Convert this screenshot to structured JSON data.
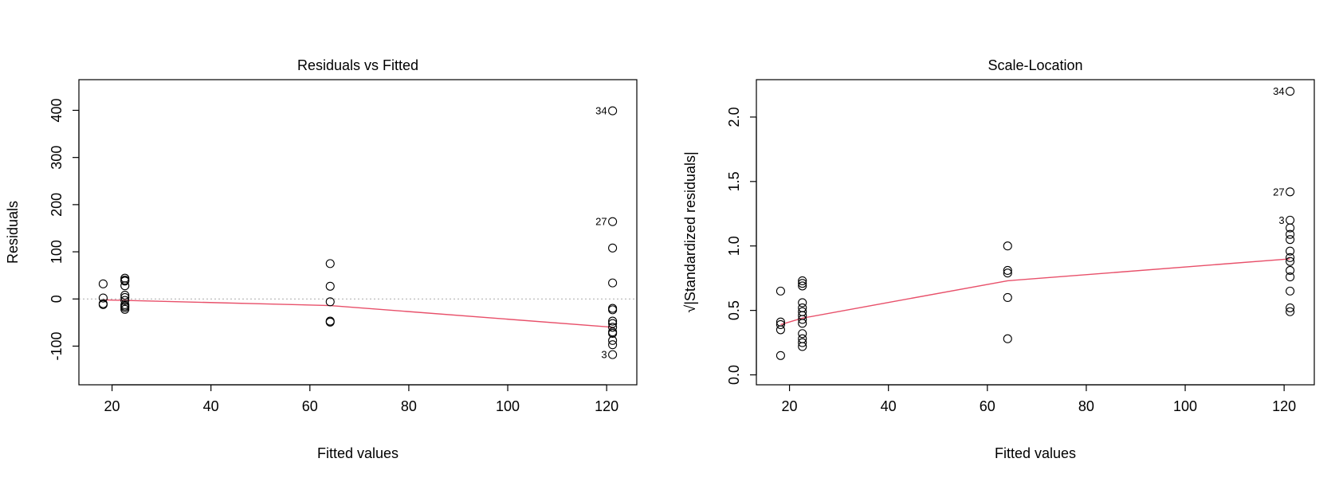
{
  "chart_data": [
    {
      "type": "scatter",
      "title": "Residuals vs Fitted",
      "xlabel": "Fitted values",
      "ylabel": "Residuals",
      "xlim": [
        13.3,
        126.1
      ],
      "ylim": [
        -182,
        465
      ],
      "xticks": [
        20,
        40,
        60,
        80,
        100,
        120
      ],
      "yticks": [
        -100,
        0,
        100,
        200,
        300,
        400
      ],
      "xtick_labels": [
        "20",
        "40",
        "60",
        "80",
        "100",
        "120"
      ],
      "ytick_labels": [
        "-100",
        "0",
        "100",
        "200",
        "300",
        "400"
      ],
      "reference_line": {
        "y": 0,
        "style": "dotted",
        "color": "#aaaaaa"
      },
      "points": [
        {
          "x": 18.2,
          "y": 32
        },
        {
          "x": 18.2,
          "y": 2
        },
        {
          "x": 18.2,
          "y": -10
        },
        {
          "x": 18.2,
          "y": -12
        },
        {
          "x": 22.6,
          "y": 44
        },
        {
          "x": 22.6,
          "y": 40
        },
        {
          "x": 22.6,
          "y": 38
        },
        {
          "x": 22.6,
          "y": 28
        },
        {
          "x": 22.6,
          "y": 8
        },
        {
          "x": 22.6,
          "y": 3
        },
        {
          "x": 22.6,
          "y": -3
        },
        {
          "x": 22.6,
          "y": -12
        },
        {
          "x": 22.6,
          "y": -15
        },
        {
          "x": 22.6,
          "y": -18
        },
        {
          "x": 22.6,
          "y": -22
        },
        {
          "x": 64.1,
          "y": 75
        },
        {
          "x": 64.1,
          "y": 27
        },
        {
          "x": 64.1,
          "y": -6
        },
        {
          "x": 64.1,
          "y": -47
        },
        {
          "x": 64.1,
          "y": -49
        },
        {
          "x": 121.2,
          "y": 399,
          "label": "34"
        },
        {
          "x": 121.2,
          "y": 164,
          "label": "27"
        },
        {
          "x": 121.2,
          "y": 108
        },
        {
          "x": 121.2,
          "y": 34
        },
        {
          "x": 121.2,
          "y": -20
        },
        {
          "x": 121.2,
          "y": -23
        },
        {
          "x": 121.2,
          "y": -47
        },
        {
          "x": 121.2,
          "y": -52
        },
        {
          "x": 121.2,
          "y": -60
        },
        {
          "x": 121.2,
          "y": -70
        },
        {
          "x": 121.2,
          "y": -73
        },
        {
          "x": 121.2,
          "y": -88
        },
        {
          "x": 121.2,
          "y": -97
        },
        {
          "x": 121.2,
          "y": -118,
          "label": "3"
        }
      ],
      "smooth_line": {
        "color": "#e8506a",
        "x": [
          18.2,
          22.6,
          64.1,
          121.2
        ],
        "y": [
          -2,
          -3,
          -14,
          -60
        ]
      }
    },
    {
      "type": "scatter",
      "title": "Scale-Location",
      "xlabel": "Fitted values",
      "ylabel": "√|Standardized residuals|",
      "xlim": [
        13.3,
        126.1
      ],
      "ylim": [
        -0.077,
        2.29
      ],
      "xticks": [
        20,
        40,
        60,
        80,
        100,
        120
      ],
      "yticks": [
        0.0,
        0.5,
        1.0,
        1.5,
        2.0
      ],
      "xtick_labels": [
        "20",
        "40",
        "60",
        "80",
        "100",
        "120"
      ],
      "ytick_labels": [
        "0.0",
        "0.5",
        "1.0",
        "1.5",
        "2.0"
      ],
      "points": [
        {
          "x": 18.2,
          "y": 0.65
        },
        {
          "x": 18.2,
          "y": 0.41
        },
        {
          "x": 18.2,
          "y": 0.39
        },
        {
          "x": 18.2,
          "y": 0.35
        },
        {
          "x": 18.2,
          "y": 0.15
        },
        {
          "x": 22.6,
          "y": 0.73
        },
        {
          "x": 22.6,
          "y": 0.71
        },
        {
          "x": 22.6,
          "y": 0.69
        },
        {
          "x": 22.6,
          "y": 0.56
        },
        {
          "x": 22.6,
          "y": 0.52
        },
        {
          "x": 22.6,
          "y": 0.49
        },
        {
          "x": 22.6,
          "y": 0.46
        },
        {
          "x": 22.6,
          "y": 0.43
        },
        {
          "x": 22.6,
          "y": 0.4
        },
        {
          "x": 22.6,
          "y": 0.32
        },
        {
          "x": 22.6,
          "y": 0.28
        },
        {
          "x": 22.6,
          "y": 0.25
        },
        {
          "x": 22.6,
          "y": 0.22
        },
        {
          "x": 64.1,
          "y": 1.0
        },
        {
          "x": 64.1,
          "y": 0.81
        },
        {
          "x": 64.1,
          "y": 0.79
        },
        {
          "x": 64.1,
          "y": 0.6
        },
        {
          "x": 64.1,
          "y": 0.28
        },
        {
          "x": 121.2,
          "y": 2.2,
          "label": "34"
        },
        {
          "x": 121.2,
          "y": 1.42,
          "label": "27"
        },
        {
          "x": 121.2,
          "y": 1.2,
          "label": "3"
        },
        {
          "x": 121.2,
          "y": 1.14
        },
        {
          "x": 121.2,
          "y": 1.09
        },
        {
          "x": 121.2,
          "y": 1.05
        },
        {
          "x": 121.2,
          "y": 0.96
        },
        {
          "x": 121.2,
          "y": 0.91
        },
        {
          "x": 121.2,
          "y": 0.88
        },
        {
          "x": 121.2,
          "y": 0.81
        },
        {
          "x": 121.2,
          "y": 0.76
        },
        {
          "x": 121.2,
          "y": 0.65
        },
        {
          "x": 121.2,
          "y": 0.52
        },
        {
          "x": 121.2,
          "y": 0.49
        }
      ],
      "smooth_line": {
        "color": "#e8506a",
        "x": [
          18.2,
          22.6,
          64.1,
          121.2
        ],
        "y": [
          0.39,
          0.44,
          0.73,
          0.9
        ]
      }
    }
  ]
}
